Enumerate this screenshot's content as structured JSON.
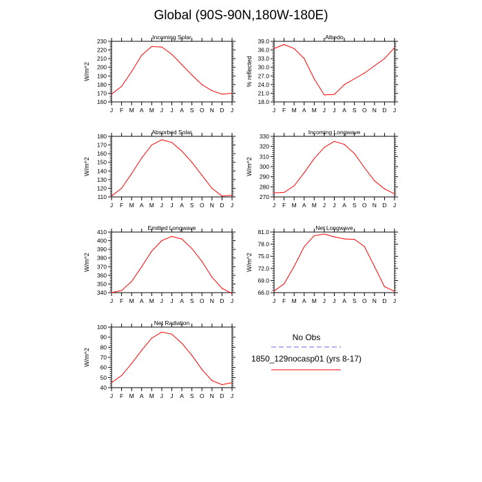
{
  "title": "Global (90S-90N,180W-180E)",
  "legend": {
    "entries": [
      {
        "label": "No Obs",
        "color": "#6666ff",
        "dash": "dashed"
      },
      {
        "label": "1850_129nocasp01 (yrs 8-17)",
        "color": "#ff0000",
        "dash": "solid"
      }
    ]
  },
  "chart_data": [
    {
      "type": "line",
      "title": "Incoming Solar",
      "ylabel": "W/m^2",
      "x": [
        "J",
        "F",
        "M",
        "A",
        "M",
        "J",
        "J",
        "A",
        "S",
        "O",
        "N",
        "D",
        "J"
      ],
      "ylim": [
        160,
        230
      ],
      "yticks": [
        160,
        170,
        180,
        190,
        200,
        210,
        220,
        230
      ],
      "ytick_labels": [
        "160",
        "170",
        "180",
        "190",
        "200",
        "210",
        "220",
        "230"
      ],
      "series": [
        {
          "color": "#ff0000",
          "values": [
            169,
            178,
            195,
            214,
            224,
            223.5,
            215,
            203,
            191,
            180,
            173,
            169,
            170
          ]
        }
      ]
    },
    {
      "type": "line",
      "title": "Albedo",
      "ylabel": "% reflected",
      "x": [
        "J",
        "F",
        "M",
        "A",
        "M",
        "J",
        "J",
        "A",
        "S",
        "O",
        "N",
        "D",
        "J"
      ],
      "ylim": [
        18,
        39
      ],
      "yticks": [
        18,
        21,
        24,
        27,
        30,
        33,
        36,
        39
      ],
      "ytick_labels": [
        "18.0",
        "21.0",
        "24.0",
        "27.0",
        "30.0",
        "33.0",
        "36.0",
        "39.0"
      ],
      "series": [
        {
          "color": "#ff0000",
          "values": [
            36.5,
            37.9,
            36.5,
            33,
            26,
            20.4,
            20.6,
            24,
            26,
            28,
            30.5,
            33,
            36.8
          ]
        }
      ]
    },
    {
      "type": "line",
      "title": "Absorbed Solar",
      "ylabel": "W/m^2",
      "x": [
        "J",
        "F",
        "M",
        "A",
        "M",
        "J",
        "J",
        "A",
        "S",
        "O",
        "N",
        "D",
        "J"
      ],
      "ylim": [
        110,
        180
      ],
      "yticks": [
        110,
        120,
        130,
        140,
        150,
        160,
        170,
        180
      ],
      "ytick_labels": [
        "110",
        "120",
        "130",
        "140",
        "150",
        "160",
        "170",
        "180"
      ],
      "series": [
        {
          "color": "#ff0000",
          "values": [
            111,
            120,
            137,
            155,
            170,
            176,
            173,
            163,
            150,
            135,
            120,
            111,
            112
          ]
        }
      ]
    },
    {
      "type": "line",
      "title": "Incoming Longwave",
      "ylabel": "W/m^2",
      "x": [
        "J",
        "F",
        "M",
        "A",
        "M",
        "J",
        "J",
        "A",
        "S",
        "O",
        "N",
        "D",
        "J"
      ],
      "ylim": [
        270,
        330
      ],
      "yticks": [
        270,
        280,
        290,
        300,
        310,
        320,
        330
      ],
      "ytick_labels": [
        "270",
        "280",
        "290",
        "300",
        "310",
        "320",
        "330"
      ],
      "series": [
        {
          "color": "#ff0000",
          "values": [
            274,
            274.5,
            281,
            294,
            308,
            319,
            325,
            322,
            313,
            299,
            286,
            278,
            273
          ]
        }
      ]
    },
    {
      "type": "line",
      "title": "Emitted Longwave",
      "ylabel": "W/m^2",
      "x": [
        "J",
        "F",
        "M",
        "A",
        "M",
        "J",
        "J",
        "A",
        "S",
        "O",
        "N",
        "D",
        "J"
      ],
      "ylim": [
        340,
        410
      ],
      "yticks": [
        340,
        350,
        360,
        370,
        380,
        390,
        400,
        410
      ],
      "ytick_labels": [
        "340",
        "350",
        "360",
        "370",
        "380",
        "390",
        "400",
        "410"
      ],
      "series": [
        {
          "color": "#ff0000",
          "values": [
            340,
            342.5,
            353,
            370,
            388,
            400,
            405,
            402,
            391,
            376,
            358,
            345,
            339
          ]
        }
      ]
    },
    {
      "type": "line",
      "title": "Net Longwave",
      "ylabel": "W/m^2",
      "x": [
        "J",
        "F",
        "M",
        "A",
        "M",
        "J",
        "J",
        "A",
        "S",
        "O",
        "N",
        "D",
        "J"
      ],
      "ylim": [
        66,
        81
      ],
      "yticks": [
        66,
        69,
        72,
        75,
        78,
        81
      ],
      "ytick_labels": [
        "66.0",
        "69.0",
        "72.0",
        "75.0",
        "78.0",
        "81.0"
      ],
      "series": [
        {
          "color": "#ff0000",
          "values": [
            66.4,
            68.2,
            72.5,
            77.4,
            80.1,
            80.5,
            79.8,
            79.3,
            79.2,
            77.4,
            72.5,
            67.5,
            66.3
          ]
        }
      ]
    },
    {
      "type": "line",
      "title": "Net Radiation",
      "ylabel": "W/m^2",
      "x": [
        "J",
        "F",
        "M",
        "A",
        "M",
        "J",
        "J",
        "A",
        "S",
        "O",
        "N",
        "D",
        "J"
      ],
      "ylim": [
        40,
        100
      ],
      "yticks": [
        40,
        50,
        60,
        70,
        80,
        90,
        100
      ],
      "ytick_labels": [
        "40",
        "50",
        "60",
        "70",
        "80",
        "90",
        "100"
      ],
      "series": [
        {
          "color": "#ff0000",
          "values": [
            45,
            52,
            64,
            77,
            89,
            95,
            93,
            84,
            72,
            58,
            47,
            43,
            45
          ]
        }
      ]
    }
  ]
}
